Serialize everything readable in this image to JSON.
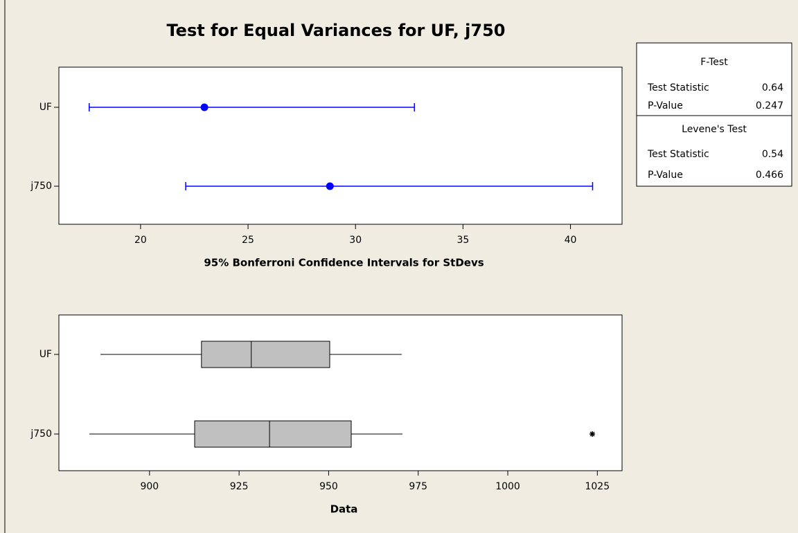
{
  "title": "Test for Equal Variances for UF, j750",
  "chart_data": [
    {
      "type": "interval",
      "categories": [
        "UF",
        "j750"
      ],
      "values": [
        22.97,
        28.81
      ],
      "lower": [
        17.61,
        22.1
      ],
      "upper": [
        32.74,
        41.03
      ],
      "color": "#0000ff",
      "xlabel": "95% Bonferroni Confidence Intervals for StDevs",
      "xlim": [
        16.2,
        42.4
      ],
      "xticks": [
        20,
        25,
        30,
        35,
        40
      ]
    },
    {
      "type": "box",
      "categories": [
        "UF",
        "j750"
      ],
      "min": [
        886.3,
        883.2
      ],
      "q1": [
        914.5,
        912.6
      ],
      "median": [
        928.4,
        933.5
      ],
      "q3": [
        950.3,
        956.3
      ],
      "max": [
        970.4,
        970.6
      ],
      "outliers": [
        [],
        [
          1023.6
        ]
      ],
      "color": "#c0c0c0",
      "xlabel": "Data",
      "xlim": [
        874.7,
        1031.9
      ],
      "xticks": [
        900,
        925,
        950,
        975,
        1000,
        1025
      ]
    }
  ],
  "stats_table": {
    "sections": [
      {
        "title": "F-Test",
        "rows": [
          [
            "Test Statistic",
            0.64
          ],
          [
            "P-Value",
            0.247
          ]
        ]
      },
      {
        "title": "Levene's Test",
        "rows": [
          [
            "Test Statistic",
            0.54
          ],
          [
            "P-Value",
            0.466
          ]
        ]
      }
    ]
  }
}
